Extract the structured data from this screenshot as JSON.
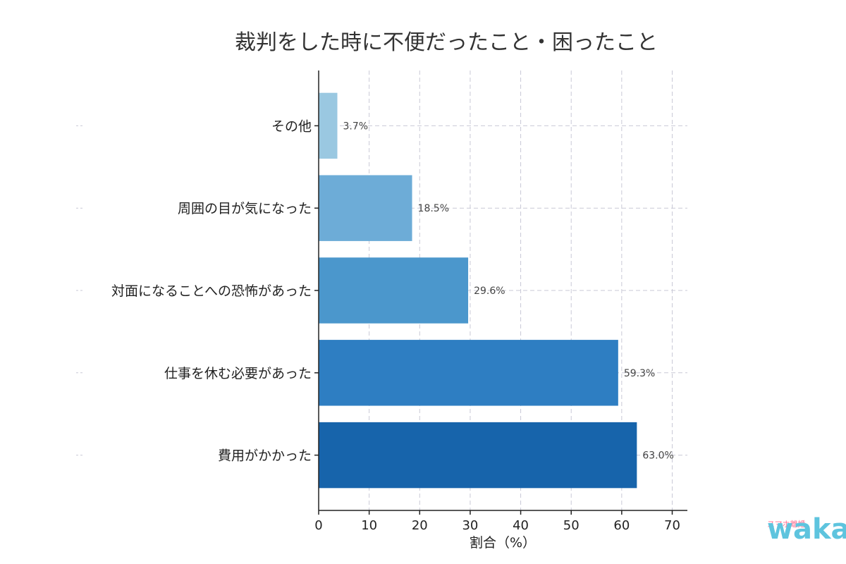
{
  "chart_data": {
    "type": "bar",
    "orientation": "horizontal",
    "title": "裁判をした時に不便だったこと・困ったこと",
    "xlabel": "割合（%）",
    "ylabel": "",
    "xlim": [
      0,
      73
    ],
    "xticks": [
      0,
      10,
      20,
      30,
      40,
      50,
      60,
      70
    ],
    "grid": true,
    "categories": [
      "その他",
      "周囲の目が気になった",
      "対面になることへの恐怖があった",
      "仕事を休む必要があった",
      "費用がかかった"
    ],
    "values": [
      3.7,
      18.5,
      29.6,
      59.3,
      63.0
    ],
    "data_labels": [
      "3.7%",
      "18.5%",
      "29.6%",
      "59.3%",
      "63.0%"
    ],
    "colors": [
      "#9ac8e1",
      "#6dacd7",
      "#4b97cc",
      "#2e7ec2",
      "#1764ab"
    ]
  },
  "watermark": {
    "small_text": "スマホ離婚",
    "brand_text": "wakai"
  }
}
